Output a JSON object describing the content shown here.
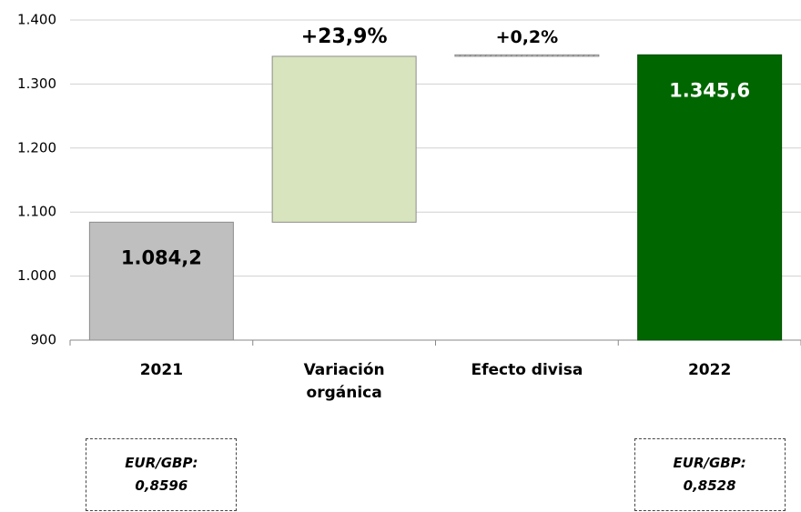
{
  "chart_data": {
    "type": "waterfall",
    "categories": [
      "2021",
      "Variación orgánica",
      "Efecto divisa",
      "2022"
    ],
    "measures": [
      "total",
      "relative",
      "relative",
      "total"
    ],
    "values": [
      1084.2,
      259.1,
      2.3,
      1345.6
    ],
    "value_labels": [
      "1.084,2",
      null,
      null,
      "1.345,6"
    ],
    "percent_changes": [
      null,
      23.9,
      0.2,
      null
    ],
    "percent_labels": [
      null,
      "+23,9%",
      "+0,2%",
      null
    ],
    "colors": [
      "#bfbfbf",
      "#d7e4bd",
      "#a6a6a6",
      "#006600"
    ],
    "label_colors": [
      "#000000",
      null,
      null,
      "#ffffff"
    ],
    "ylim": [
      900,
      1400
    ],
    "yticks": [
      {
        "value": 900,
        "label": "900"
      },
      {
        "value": 1000,
        "label": "1.000"
      },
      {
        "value": 1100,
        "label": "1.100"
      },
      {
        "value": 1200,
        "label": "1.200"
      },
      {
        "value": 1300,
        "label": "1.300"
      },
      {
        "value": 1400,
        "label": "1.400"
      }
    ],
    "grid": true,
    "notes": [
      "EUR/GBP:\n0,8596",
      null,
      null,
      "EUR/GBP:\n0,8528"
    ]
  }
}
